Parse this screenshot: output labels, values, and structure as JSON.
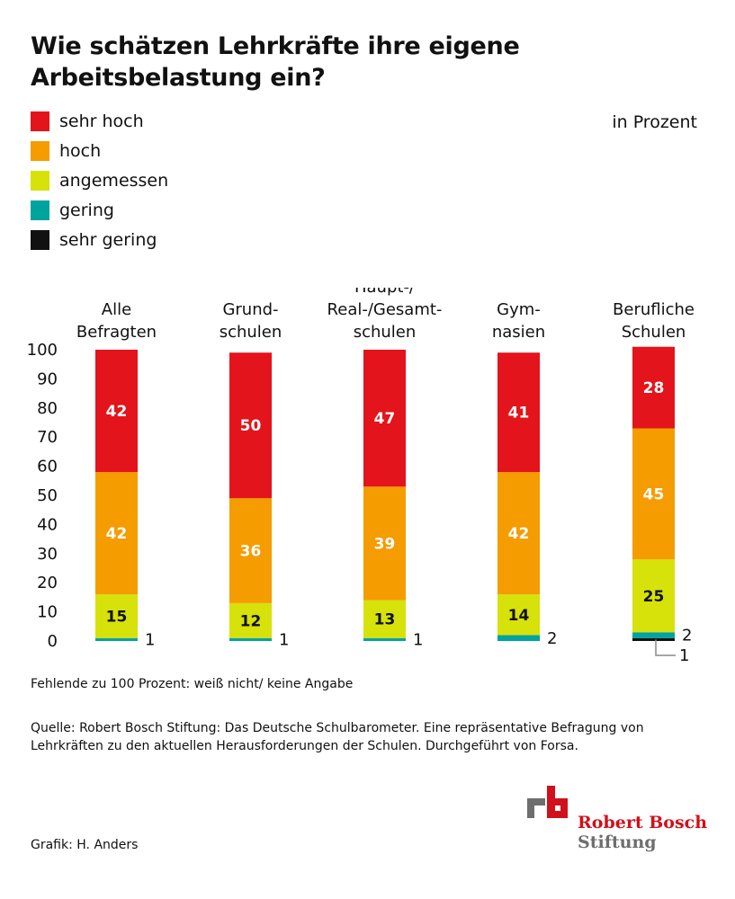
{
  "header": {
    "title": "Wie schätzen Lehrkräfte ihre eigene Arbeitsbelastung ein?",
    "unit": "in Prozent"
  },
  "legend": [
    {
      "label": "sehr hoch",
      "color": "#e3141b"
    },
    {
      "label": "hoch",
      "color": "#f59c00"
    },
    {
      "label": "angemessen",
      "color": "#d7e10a"
    },
    {
      "label": "gering",
      "color": "#00a39e"
    },
    {
      "label": "sehr gering",
      "color": "#111111"
    }
  ],
  "chart_data": {
    "type": "bar",
    "stacked": true,
    "categories": [
      [
        "Alle",
        "Befragten"
      ],
      [
        "Grund-",
        "schulen"
      ],
      [
        "Haupt-/",
        "Real-/Gesamt-",
        "schulen"
      ],
      [
        "Gym-",
        "nasien"
      ],
      [
        "Berufliche",
        "Schulen"
      ]
    ],
    "series": [
      {
        "name": "sehr hoch",
        "color": "#e3141b",
        "values": [
          42,
          50,
          47,
          41,
          28
        ]
      },
      {
        "name": "hoch",
        "color": "#f59c00",
        "values": [
          42,
          36,
          39,
          42,
          45
        ]
      },
      {
        "name": "angemessen",
        "color": "#d7e10a",
        "values": [
          15,
          12,
          13,
          14,
          25
        ]
      },
      {
        "name": "gering",
        "color": "#00a39e",
        "values": [
          1,
          1,
          1,
          2,
          2
        ]
      },
      {
        "name": "sehr gering",
        "color": "#111111",
        "values": [
          0,
          0,
          0,
          0,
          1
        ]
      }
    ],
    "ylim": [
      0,
      100
    ],
    "yticks": [
      "0",
      "10",
      "20",
      "30",
      "40",
      "50",
      "60",
      "70",
      "80",
      "90",
      "100"
    ],
    "grid": false,
    "legend_position": "top-left"
  },
  "footer": {
    "note": "Fehlende zu 100 Prozent: weiß nicht/ keine Angabe",
    "source": "Quelle: Robert Bosch Stiftung: Das Deutsche Schulbarometer. Eine repräsentative Befragung von Lehrkräften zu den aktuellen Herausforderungen der Schulen. Durchgeführt von Forsa.",
    "credit": "Grafik: H. Anders"
  },
  "logo": {
    "line1": "Robert Bosch",
    "line2": "Stiftung",
    "colors": {
      "red": "#d0101b",
      "gray": "#6e6e6e"
    }
  }
}
